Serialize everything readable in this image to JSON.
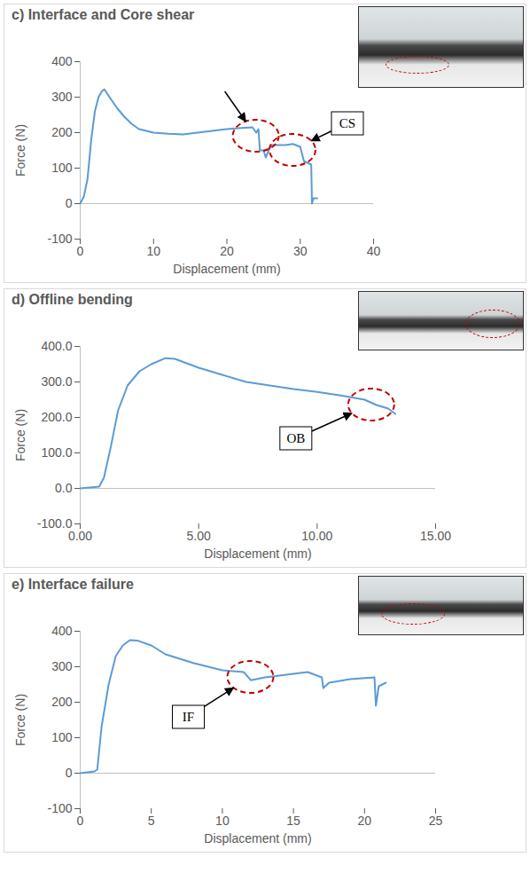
{
  "chart_data": [
    {
      "type": "line",
      "title": "c) Interface and Core shear",
      "x_label": "Displacement (mm)",
      "y_label": "Force (N)",
      "xlim": [
        0,
        40
      ],
      "xticks": [
        0,
        10,
        20,
        30,
        40
      ],
      "ylim": [
        -100,
        400
      ],
      "yticks": [
        -100,
        0,
        100,
        200,
        300,
        400
      ],
      "x": [
        0,
        0.5,
        1,
        1.5,
        2,
        2.5,
        3,
        3.3,
        4,
        5,
        6,
        7,
        8,
        10,
        12,
        14,
        16,
        18,
        20,
        22,
        23.5,
        24,
        24.3,
        24.5,
        25,
        25.3,
        26,
        28,
        29,
        30,
        30.5,
        31.5,
        31.6,
        31.8,
        32.3
      ],
      "series": [
        {
          "color": "#5b9bd5",
          "values": [
            0,
            20,
            70,
            180,
            260,
            300,
            318,
            322,
            300,
            270,
            245,
            225,
            210,
            200,
            197,
            195,
            200,
            205,
            210,
            213,
            215,
            200,
            210,
            150,
            150,
            130,
            165,
            165,
            168,
            160,
            120,
            110,
            0,
            15,
            15
          ]
        }
      ],
      "annotations": [
        {
          "text": "CS",
          "x": 29,
          "y": 150
        }
      ],
      "highlights": [
        {
          "x": 24,
          "y": 190
        }
      ]
    },
    {
      "type": "line",
      "title": "d) Offline bending",
      "x_label": "Displacement (mm)",
      "y_label": "Force (N)",
      "xlim": [
        0,
        15
      ],
      "xticks": [
        {
          "value": 0,
          "label": "0.00"
        },
        {
          "value": 5,
          "label": "5.00"
        },
        {
          "value": 10,
          "label": "10.00"
        },
        {
          "value": 15,
          "label": "15.00"
        }
      ],
      "ylim": [
        -100,
        400
      ],
      "yticks": [
        {
          "value": -100,
          "label": "-100.0"
        },
        {
          "value": 0,
          "label": "0.0"
        },
        {
          "value": 100,
          "label": "100.0"
        },
        {
          "value": 200,
          "label": "200.0"
        },
        {
          "value": 300,
          "label": "300.0"
        },
        {
          "value": 400,
          "label": "400.0"
        }
      ],
      "x": [
        0,
        0.8,
        1,
        1.3,
        1.6,
        2,
        2.5,
        3,
        3.6,
        4,
        5,
        6,
        7,
        8,
        9,
        10,
        11,
        12,
        12.5,
        13,
        13.3
      ],
      "series": [
        {
          "color": "#5b9bd5",
          "values": [
            0,
            5,
            30,
            120,
            220,
            290,
            330,
            350,
            367,
            365,
            340,
            320,
            300,
            290,
            280,
            272,
            262,
            250,
            235,
            225,
            210
          ]
        }
      ],
      "annotations": [
        {
          "text": "OB",
          "x": 12.3,
          "y": 235
        }
      ]
    },
    {
      "type": "line",
      "title": "e) Interface failure",
      "x_label": "Displacement (mm)",
      "y_label": "Force (N)",
      "xlim": [
        0,
        25
      ],
      "xticks": [
        0,
        5,
        10,
        15,
        20,
        25
      ],
      "ylim": [
        -100,
        400
      ],
      "yticks": [
        -100,
        0,
        100,
        200,
        300,
        400
      ],
      "x": [
        0,
        1,
        1.2,
        1.5,
        2,
        2.5,
        3,
        3.5,
        4,
        5,
        6,
        8,
        10,
        11.5,
        12,
        13,
        15,
        16,
        17,
        17.1,
        17.5,
        19,
        20.7,
        20.8,
        21,
        21.5
      ],
      "series": [
        {
          "color": "#5b9bd5",
          "values": [
            0,
            5,
            10,
            130,
            250,
            330,
            360,
            375,
            374,
            360,
            335,
            310,
            290,
            285,
            262,
            270,
            280,
            285,
            270,
            240,
            255,
            265,
            270,
            190,
            245,
            255
          ]
        }
      ],
      "annotations": [
        {
          "text": "IF",
          "x": 12,
          "y": 270
        }
      ]
    }
  ]
}
